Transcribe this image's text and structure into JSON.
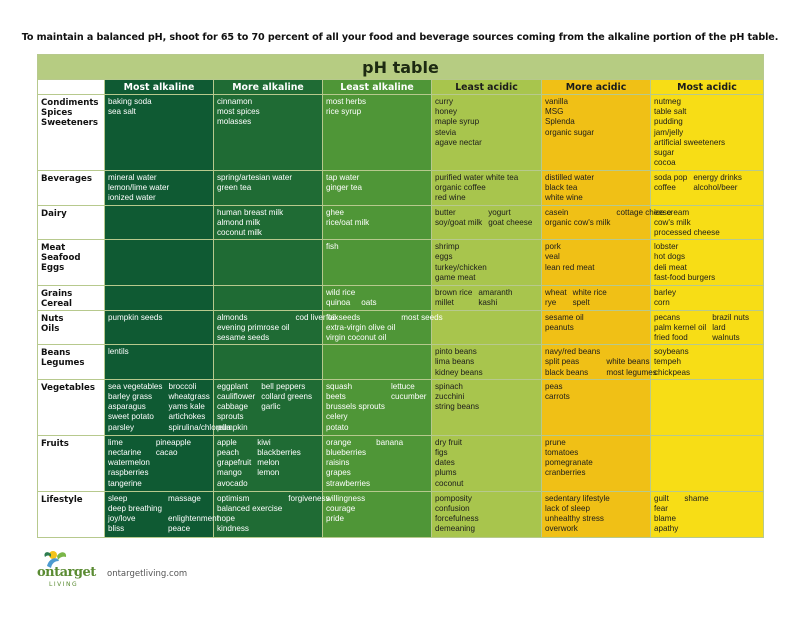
{
  "headline": "To maintain a balanced pH, shoot for 65 to 70 percent of all your food and beverage sources coming from the alkaline portion of the pH table.",
  "table_title": "pH table",
  "columns": [
    "Most alkaline",
    "More alkaline",
    "Least alkaline",
    "Least acidic",
    "More acidic",
    "Most acidic"
  ],
  "column_colors": [
    "#0f5a33",
    "#1f6b34",
    "#4f9637",
    "#a8c54d",
    "#f0c016",
    "#f7dd16"
  ],
  "rows": [
    {
      "category": [
        "Condiments",
        "Spices",
        "Sweeteners"
      ],
      "cells": [
        {
          "items": [
            "baking soda",
            "sea salt"
          ]
        },
        {
          "items": [
            "cinnamon",
            "most spices",
            "molasses"
          ]
        },
        {
          "items": [
            "most herbs",
            "rice syrup"
          ]
        },
        {
          "items": [
            "curry",
            "honey",
            "maple syrup",
            "stevia",
            "agave nectar"
          ]
        },
        {
          "items": [
            "vanilla",
            "MSG",
            "Splenda",
            "organic sugar"
          ]
        },
        {
          "items": [
            "nutmeg",
            "table salt",
            "pudding",
            "jam/jelly",
            "artificial sweeteners",
            "sugar",
            "cocoa"
          ]
        }
      ]
    },
    {
      "category": [
        "Beverages"
      ],
      "cells": [
        {
          "items": [
            "mineral water",
            "lemon/lime water",
            "ionized water"
          ]
        },
        {
          "items": [
            "spring/artesian water",
            "green tea"
          ]
        },
        {
          "items": [
            "tap water",
            "ginger tea"
          ]
        },
        {
          "items": [
            "purified water white tea",
            "organic coffee",
            "red wine"
          ]
        },
        {
          "items": [
            "distilled water",
            "black tea",
            "white wine"
          ]
        },
        {
          "pairs": [
            [
              "soda pop",
              "energy drinks"
            ],
            [
              "coffee",
              "alcohol/beer"
            ]
          ]
        }
      ]
    },
    {
      "category": [
        "Dairy"
      ],
      "cells": [
        {
          "items": []
        },
        {
          "items": [
            "human breast milk",
            "almond milk",
            "coconut milk"
          ]
        },
        {
          "items": [
            "ghee",
            "rice/oat milk"
          ]
        },
        {
          "pairs": [
            [
              "butter",
              "yogurt"
            ],
            [
              "soy/goat milk",
              "goat cheese"
            ]
          ]
        },
        {
          "pairs": [
            [
              "casein",
              "cottage cheese"
            ],
            [
              "organic cow's milk",
              ""
            ]
          ]
        },
        {
          "items": [
            "ice cream",
            "cow's milk",
            "processed cheese"
          ]
        }
      ]
    },
    {
      "category": [
        "Meat",
        "Seafood",
        "Eggs"
      ],
      "cells": [
        {
          "items": []
        },
        {
          "items": []
        },
        {
          "items": [
            "fish"
          ]
        },
        {
          "items": [
            "shrimp",
            "eggs",
            "turkey/chicken",
            "game meat"
          ]
        },
        {
          "items": [
            "pork",
            "veal",
            "lean red meat"
          ]
        },
        {
          "items": [
            "lobster",
            "hot dogs",
            "deli meat",
            "fast-food burgers"
          ]
        }
      ]
    },
    {
      "category": [
        "Grains",
        "Cereal"
      ],
      "cells": [
        {
          "items": []
        },
        {
          "items": []
        },
        {
          "pairs": [
            [
              "wild rice",
              ""
            ],
            [
              "quinoa",
              "oats"
            ]
          ]
        },
        {
          "pairs": [
            [
              "brown rice",
              "amaranth"
            ],
            [
              "millet",
              "kashi"
            ]
          ]
        },
        {
          "pairs": [
            [
              "wheat",
              "white rice"
            ],
            [
              "rye",
              "spelt"
            ]
          ]
        },
        {
          "items": [
            "barley",
            "corn"
          ]
        }
      ]
    },
    {
      "category": [
        "Nuts",
        "Oils"
      ],
      "cells": [
        {
          "items": [
            "pumpkin seeds"
          ]
        },
        {
          "pairs": [
            [
              "almonds",
              "cod liver oil"
            ],
            [
              "evening primrose oil",
              ""
            ],
            [
              "sesame seeds",
              ""
            ]
          ]
        },
        {
          "pairs": [
            [
              "flaxseeds",
              "most seeds"
            ],
            [
              "extra-virgin olive oil",
              ""
            ],
            [
              "virgin coconut oil",
              ""
            ]
          ]
        },
        {
          "items": []
        },
        {
          "items": [
            "sesame oil",
            "peanuts"
          ]
        },
        {
          "pairs": [
            [
              "pecans",
              "brazil nuts"
            ],
            [
              "palm kernel oil",
              "lard"
            ],
            [
              "fried food",
              "walnuts"
            ]
          ]
        }
      ]
    },
    {
      "category": [
        "Beans",
        "Legumes"
      ],
      "cells": [
        {
          "items": [
            "lentils"
          ]
        },
        {
          "items": []
        },
        {
          "items": []
        },
        {
          "items": [
            "pinto beans",
            "lima beans",
            "kidney beans"
          ]
        },
        {
          "pairs": [
            [
              "navy/red beans",
              ""
            ],
            [
              "split peas",
              "white beans"
            ],
            [
              "black beans",
              "most legumes"
            ]
          ]
        },
        {
          "items": [
            "soybeans",
            "tempeh",
            "chickpeas"
          ]
        }
      ]
    },
    {
      "category": [
        "Vegetables"
      ],
      "cells": [
        {
          "pairs": [
            [
              "sea vegetables",
              "broccoli"
            ],
            [
              "barley grass",
              "wheatgrass"
            ],
            [
              "asparagus",
              "yams   kale"
            ],
            [
              "sweet potato",
              "artichokes"
            ],
            [
              "parsley",
              "spirulina/chlorella"
            ]
          ]
        },
        {
          "pairs": [
            [
              "eggplant",
              "bell peppers"
            ],
            [
              "cauliflower",
              "collard greens"
            ],
            [
              "cabbage",
              "garlic"
            ],
            [
              "sprouts",
              ""
            ],
            [
              "pumpkin",
              ""
            ]
          ]
        },
        {
          "pairs": [
            [
              "squash",
              "lettuce"
            ],
            [
              "beets",
              "cucumber"
            ],
            [
              "brussels sprouts",
              ""
            ],
            [
              "celery",
              ""
            ],
            [
              "potato",
              ""
            ]
          ]
        },
        {
          "items": [
            "spinach",
            "zucchini",
            "string beans"
          ]
        },
        {
          "items": [
            "peas",
            "carrots"
          ]
        },
        {
          "items": []
        }
      ]
    },
    {
      "category": [
        "Fruits"
      ],
      "cells": [
        {
          "pairs": [
            [
              "lime",
              "pineapple"
            ],
            [
              "nectarine",
              "cacao"
            ],
            [
              "watermelon",
              ""
            ],
            [
              "raspberries",
              ""
            ],
            [
              "tangerine",
              ""
            ]
          ]
        },
        {
          "pairs": [
            [
              "apple",
              "kiwi"
            ],
            [
              "peach",
              "blackberries"
            ],
            [
              "grapefruit",
              "melon"
            ],
            [
              "mango",
              "lemon"
            ],
            [
              "avocado",
              ""
            ]
          ]
        },
        {
          "pairs": [
            [
              "orange",
              "banana"
            ],
            [
              "blueberries",
              ""
            ],
            [
              "raisins",
              ""
            ],
            [
              "grapes",
              ""
            ],
            [
              "strawberries",
              ""
            ]
          ]
        },
        {
          "items": [
            "dry fruit",
            "figs",
            "dates",
            "plums",
            "coconut"
          ]
        },
        {
          "items": [
            "prune",
            "tomatoes",
            "pomegranate",
            "cranberries"
          ]
        },
        {
          "items": []
        }
      ]
    },
    {
      "category": [
        "Lifestyle"
      ],
      "cells": [
        {
          "pairs": [
            [
              "sleep",
              "massage"
            ],
            [
              "deep breathing",
              ""
            ],
            [
              "joy/love",
              "enlightenment"
            ],
            [
              "bliss",
              "peace"
            ]
          ]
        },
        {
          "pairs": [
            [
              "optimism",
              "forgiveness"
            ],
            [
              "balanced exercise",
              ""
            ],
            [
              "hope",
              ""
            ],
            [
              "kindness",
              ""
            ]
          ]
        },
        {
          "items": [
            "willingness",
            "courage",
            "pride"
          ]
        },
        {
          "items": [
            "pomposity",
            "confusion",
            "forcefulness",
            "demeaning"
          ]
        },
        {
          "items": [
            "sedentary lifestyle",
            "lack of sleep",
            "unhealthy stress",
            "overwork"
          ]
        },
        {
          "pairs": [
            [
              "guilt",
              "shame"
            ],
            [
              "fear",
              ""
            ],
            [
              "blame",
              ""
            ],
            [
              "apathy",
              ""
            ]
          ]
        }
      ]
    }
  ],
  "logo": {
    "name": "ontarget",
    "sub": "LIVING"
  },
  "website": "ontargetliving.com"
}
